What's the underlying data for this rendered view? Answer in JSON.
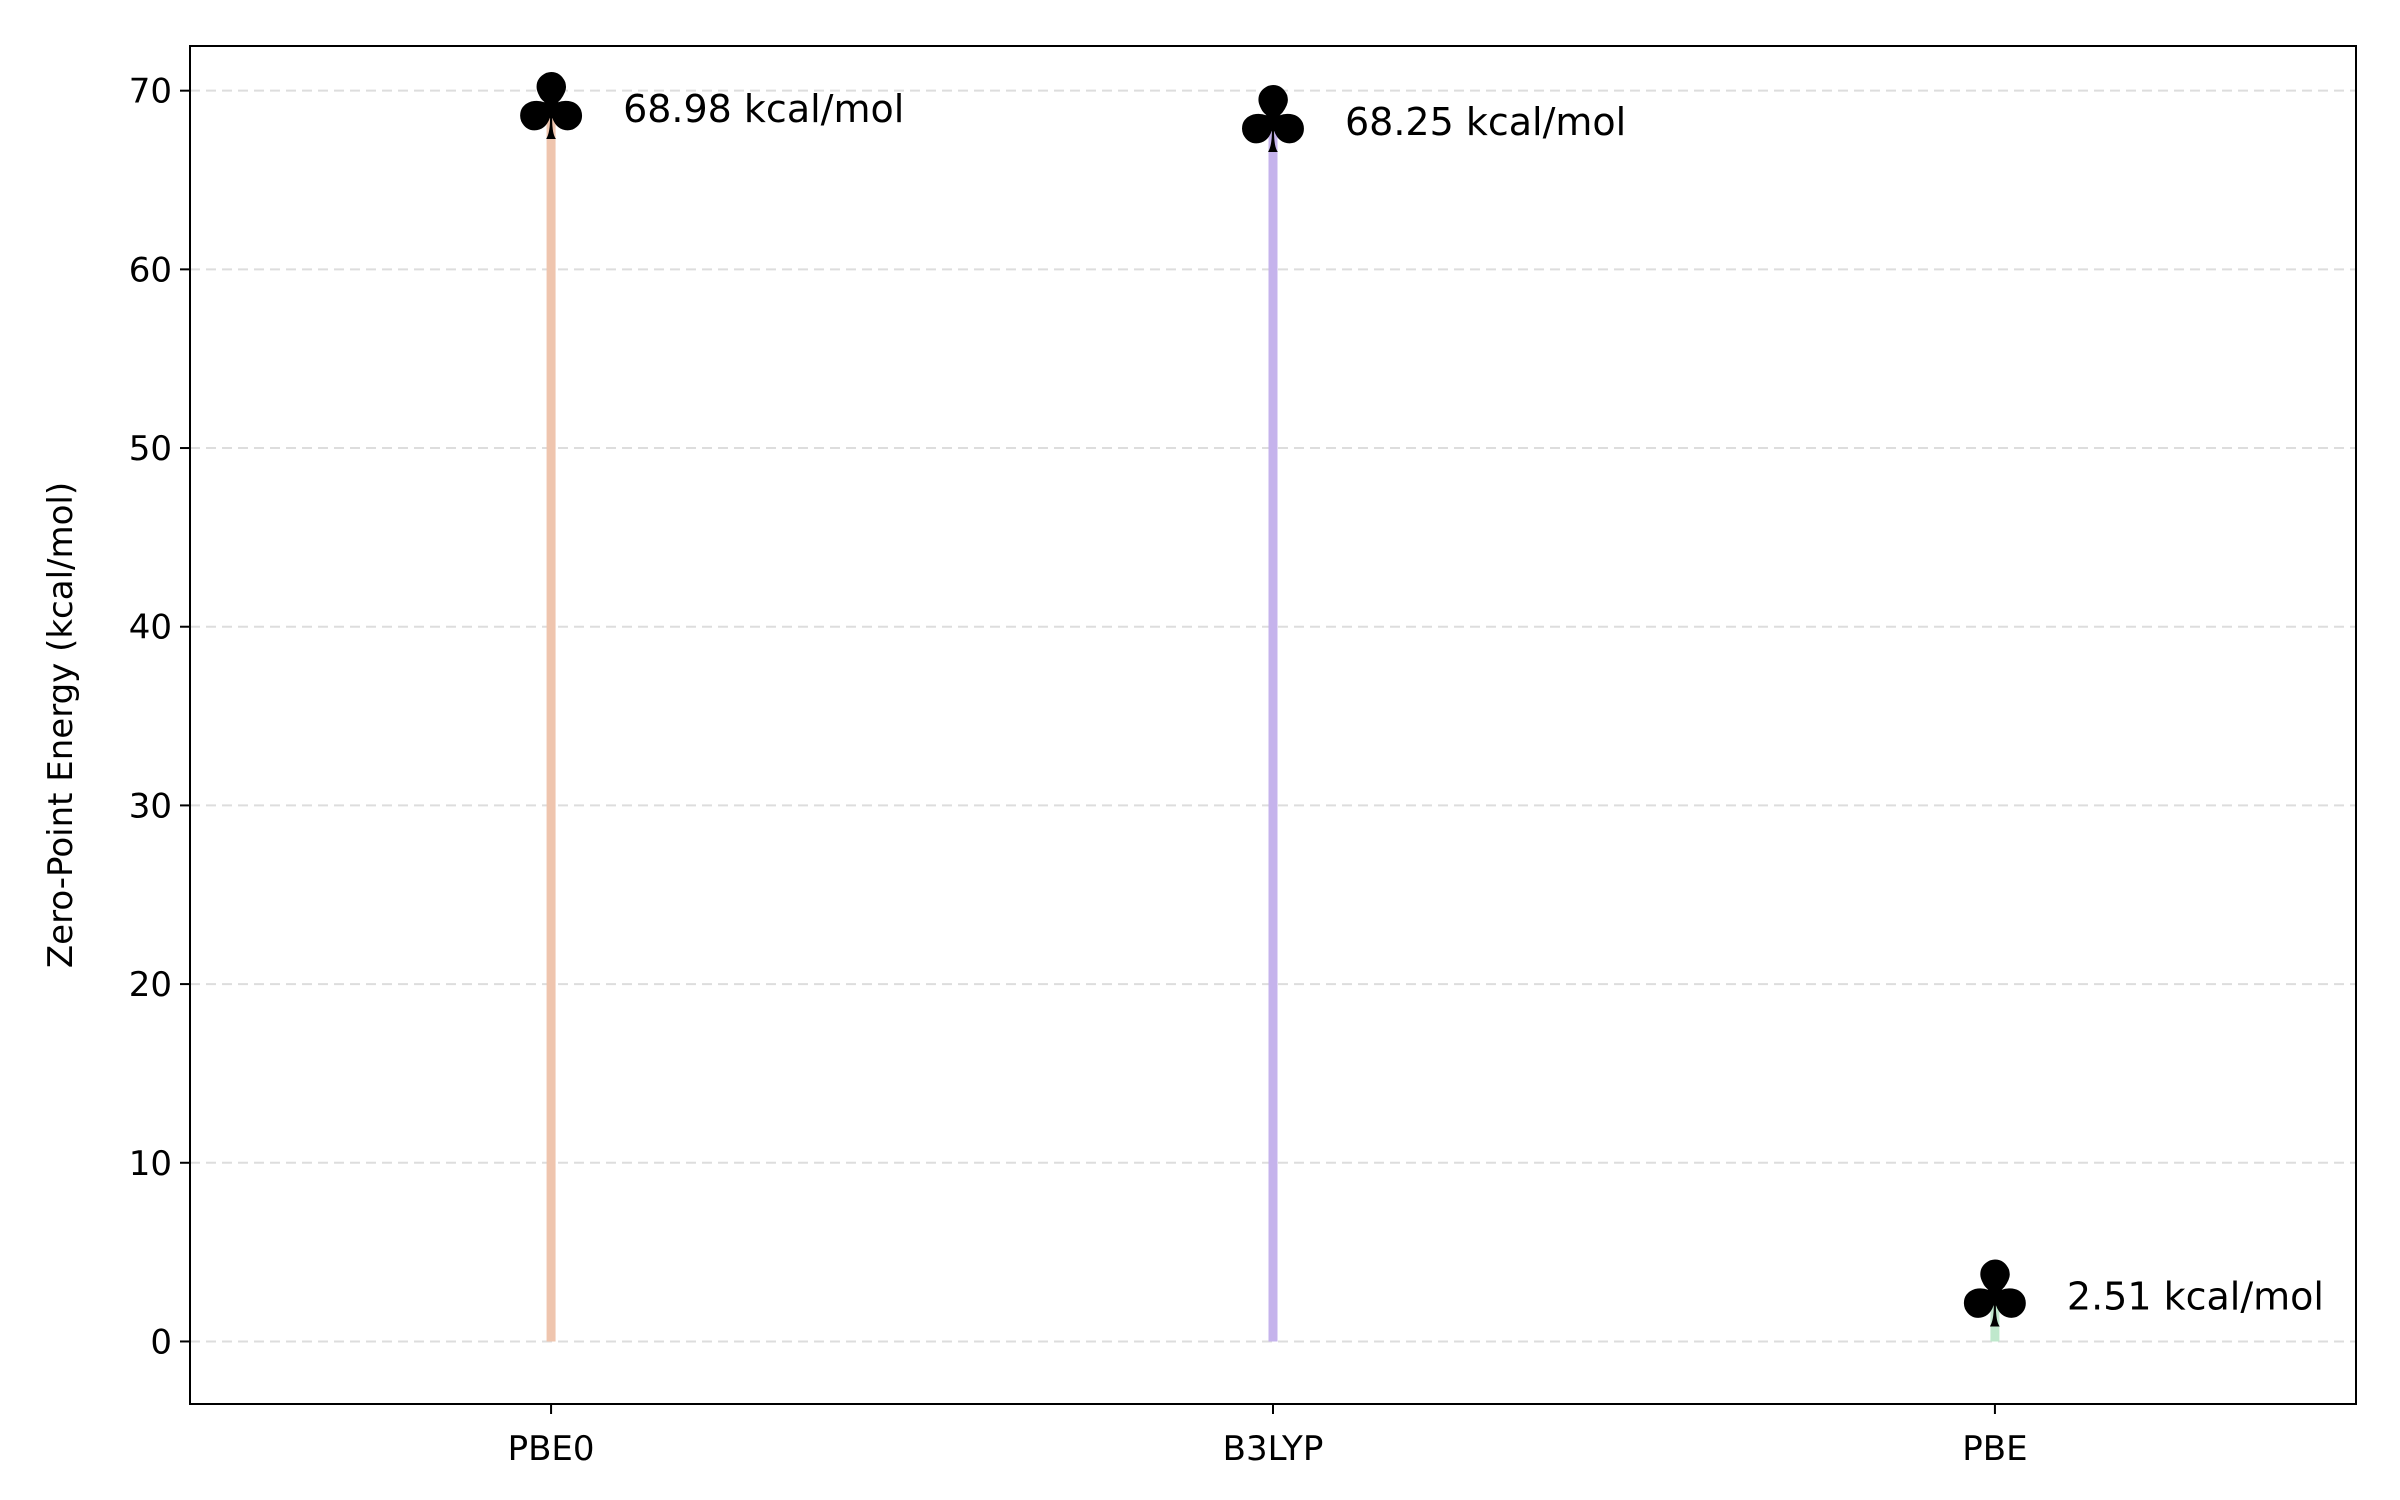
{
  "chart_data": {
    "type": "lollipop",
    "title": "",
    "xlabel": "",
    "ylabel": "Zero-Point Energy (kcal/mol)",
    "categories": [
      "PBE0",
      "B3LYP",
      "PBE"
    ],
    "values": [
      68.98,
      68.25,
      2.51
    ],
    "data_labels": [
      "68.98 kcal/mol",
      "68.25 kcal/mol",
      "2.51 kcal/mol"
    ],
    "stem_colors": [
      "#efc5ae",
      "#c5b3ec",
      "#bfe8cc"
    ],
    "marker_symbol": "♣",
    "marker_icon": "club-marker-icon",
    "marker_color": "#000000",
    "ylim": [
      -3.5,
      72.5
    ],
    "yticks": [
      0,
      10,
      20,
      30,
      40,
      50,
      60,
      70
    ],
    "grid": "y-dashed",
    "legend": "none"
  }
}
